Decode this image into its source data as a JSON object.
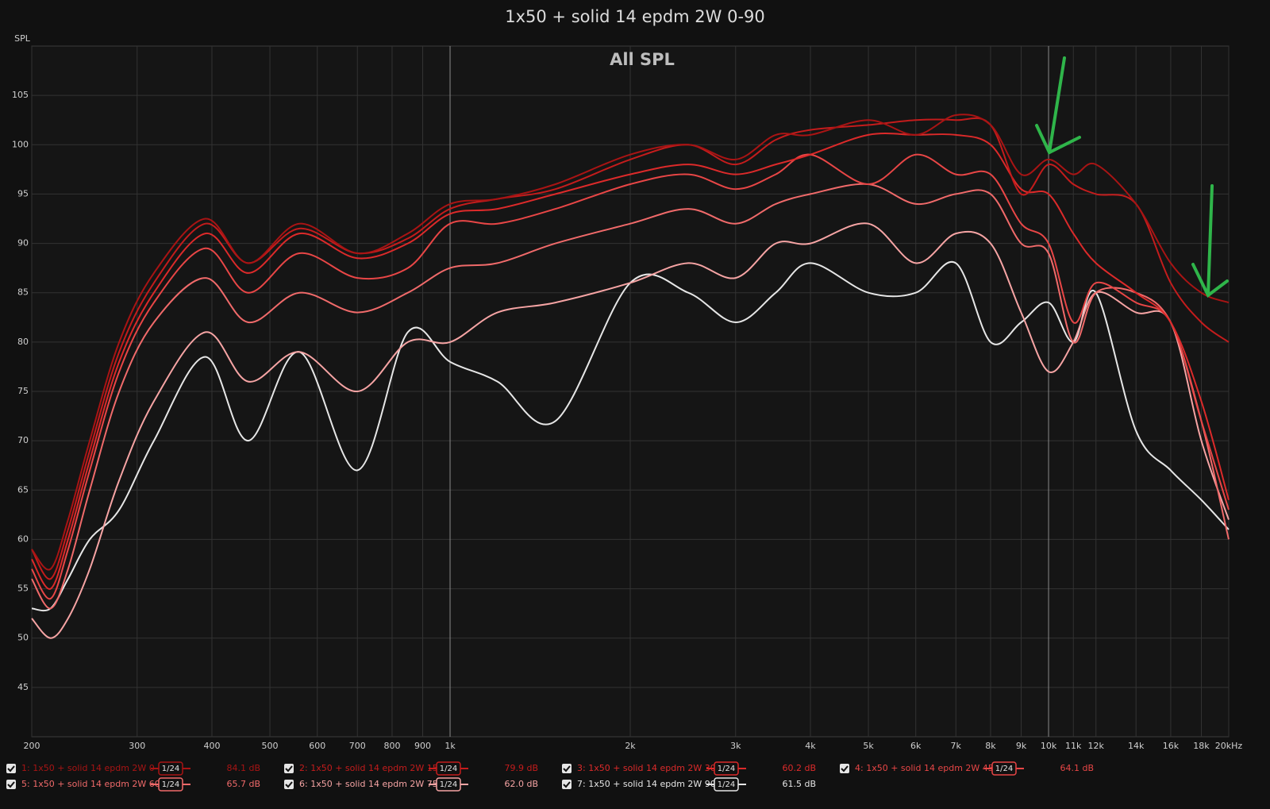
{
  "chart_data": {
    "type": "line",
    "title": "1x50 + solid 14 epdm 2W 0-90",
    "annotation": "All SPL",
    "y_label": "SPL",
    "log_x": true,
    "grid": true,
    "xlim": [
      200,
      20000
    ],
    "ylim": [
      40,
      110
    ],
    "yticks": [
      45,
      50,
      55,
      60,
      65,
      70,
      75,
      80,
      85,
      90,
      95,
      100,
      105
    ],
    "xticks": [
      200,
      300,
      400,
      500,
      600,
      700,
      800,
      900,
      {
        "value": 1000,
        "label": "1k"
      },
      {
        "value": 2000,
        "label": "2k"
      },
      {
        "value": 3000,
        "label": "3k"
      },
      {
        "value": 4000,
        "label": "4k"
      },
      {
        "value": 5000,
        "label": "5k"
      },
      {
        "value": 6000,
        "label": "6k"
      },
      {
        "value": 7000,
        "label": "7k"
      },
      {
        "value": 8000,
        "label": "8k"
      },
      {
        "value": 9000,
        "label": "9k"
      },
      {
        "value": 10000,
        "label": "10k"
      },
      {
        "value": 11000,
        "label": "11k"
      },
      {
        "value": 12000,
        "label": "12k"
      },
      {
        "value": 14000,
        "label": "14k"
      },
      {
        "value": 16000,
        "label": "16k"
      },
      {
        "value": 18000,
        "label": "18k"
      },
      {
        "value": 20000,
        "label": "20kHz"
      }
    ],
    "x": [
      200,
      215,
      230,
      250,
      280,
      320,
      390,
      460,
      560,
      700,
      850,
      1000,
      1200,
      1500,
      2000,
      2500,
      3000,
      3500,
      4000,
      5000,
      6000,
      7000,
      8000,
      9000,
      10000,
      11000,
      12000,
      14000,
      16000,
      18000,
      20000
    ],
    "series": [
      {
        "name": "1: 1x50 + solid 14 epdm 2W 0",
        "color": "#a81414",
        "smoothing": "1/24",
        "legend_value": "84.1 dB",
        "values": [
          59,
          57,
          62,
          70,
          80,
          87,
          92.5,
          88,
          92,
          89,
          91,
          94,
          94.5,
          96,
          99,
          100,
          98.5,
          101,
          101,
          102.5,
          101,
          103,
          102,
          97,
          98.5,
          97,
          98,
          94,
          88,
          85,
          84
        ]
      },
      {
        "name": "2: 1x50 + solid 14 epdm 2W 15",
        "color": "#c41c1c",
        "smoothing": "1/24",
        "legend_value": "79.9 dB",
        "values": [
          59,
          56,
          61,
          69,
          79,
          86,
          92,
          88,
          91.5,
          89,
          90.5,
          93.5,
          94.5,
          95.5,
          98.5,
          100,
          98,
          100.5,
          101.5,
          102,
          102.5,
          102.5,
          102,
          95,
          98,
          96,
          95,
          94,
          86,
          82,
          80
        ]
      },
      {
        "name": "3: 1x50 + solid 14 epdm 2W 30",
        "color": "#dc2a2a",
        "smoothing": "1/24",
        "legend_value": "60.2 dB",
        "values": [
          58,
          55,
          60,
          68,
          78,
          85,
          91,
          87,
          91,
          88.5,
          90,
          93,
          93.5,
          95,
          97,
          98,
          97,
          98,
          99,
          101,
          101,
          101,
          100,
          95.5,
          95,
          91,
          88,
          85,
          82,
          74,
          64
        ]
      },
      {
        "name": "4: 1x50 + solid 14 epdm 2W 45",
        "color": "#e84646",
        "smoothing": "1/24",
        "legend_value": "64.1 dB",
        "values": [
          57,
          54,
          59,
          67,
          77,
          84,
          89.5,
          85,
          89,
          86.5,
          87.5,
          92,
          92,
          93.5,
          96,
          97,
          95.5,
          97,
          99,
          96,
          99,
          97,
          97,
          92,
          90,
          82,
          86,
          84,
          82,
          72,
          63
        ]
      },
      {
        "name": "5: 1x50 + solid 14 epdm 2W 60",
        "color": "#f06a6a",
        "smoothing": "1/24",
        "legend_value": "65.7 dB",
        "values": [
          56,
          53,
          57,
          65,
          75,
          82,
          86.5,
          82,
          85,
          83,
          85,
          87.5,
          88,
          90,
          92,
          93.5,
          92,
          94,
          95,
          96,
          94,
          95,
          95,
          90,
          89,
          80,
          85,
          85,
          82,
          72,
          60
        ]
      },
      {
        "name": "6: 1x50 + solid 14 epdm 2W 75",
        "color": "#f6a4a4",
        "smoothing": "1/24",
        "legend_value": "62.0 dB",
        "values": [
          52,
          50,
          52,
          57,
          66,
          74,
          81,
          76,
          79,
          75,
          80,
          80,
          83,
          84,
          86,
          88,
          86.5,
          90,
          90,
          92,
          88,
          91,
          90,
          83,
          77,
          80,
          85,
          83,
          82,
          70,
          62
        ]
      },
      {
        "name": "7: 1x50 + solid 14 epdm 2W 90",
        "color": "#e6e6e6",
        "smoothing": "1/24",
        "legend_value": "61.5 dB",
        "values": [
          53,
          53,
          56,
          60,
          63,
          70,
          78.5,
          70,
          79,
          67,
          81,
          78,
          76,
          72,
          86,
          85,
          82,
          85,
          88,
          85,
          85,
          88,
          80,
          82,
          84,
          80,
          85,
          71,
          67,
          64,
          61
        ]
      }
    ]
  }
}
